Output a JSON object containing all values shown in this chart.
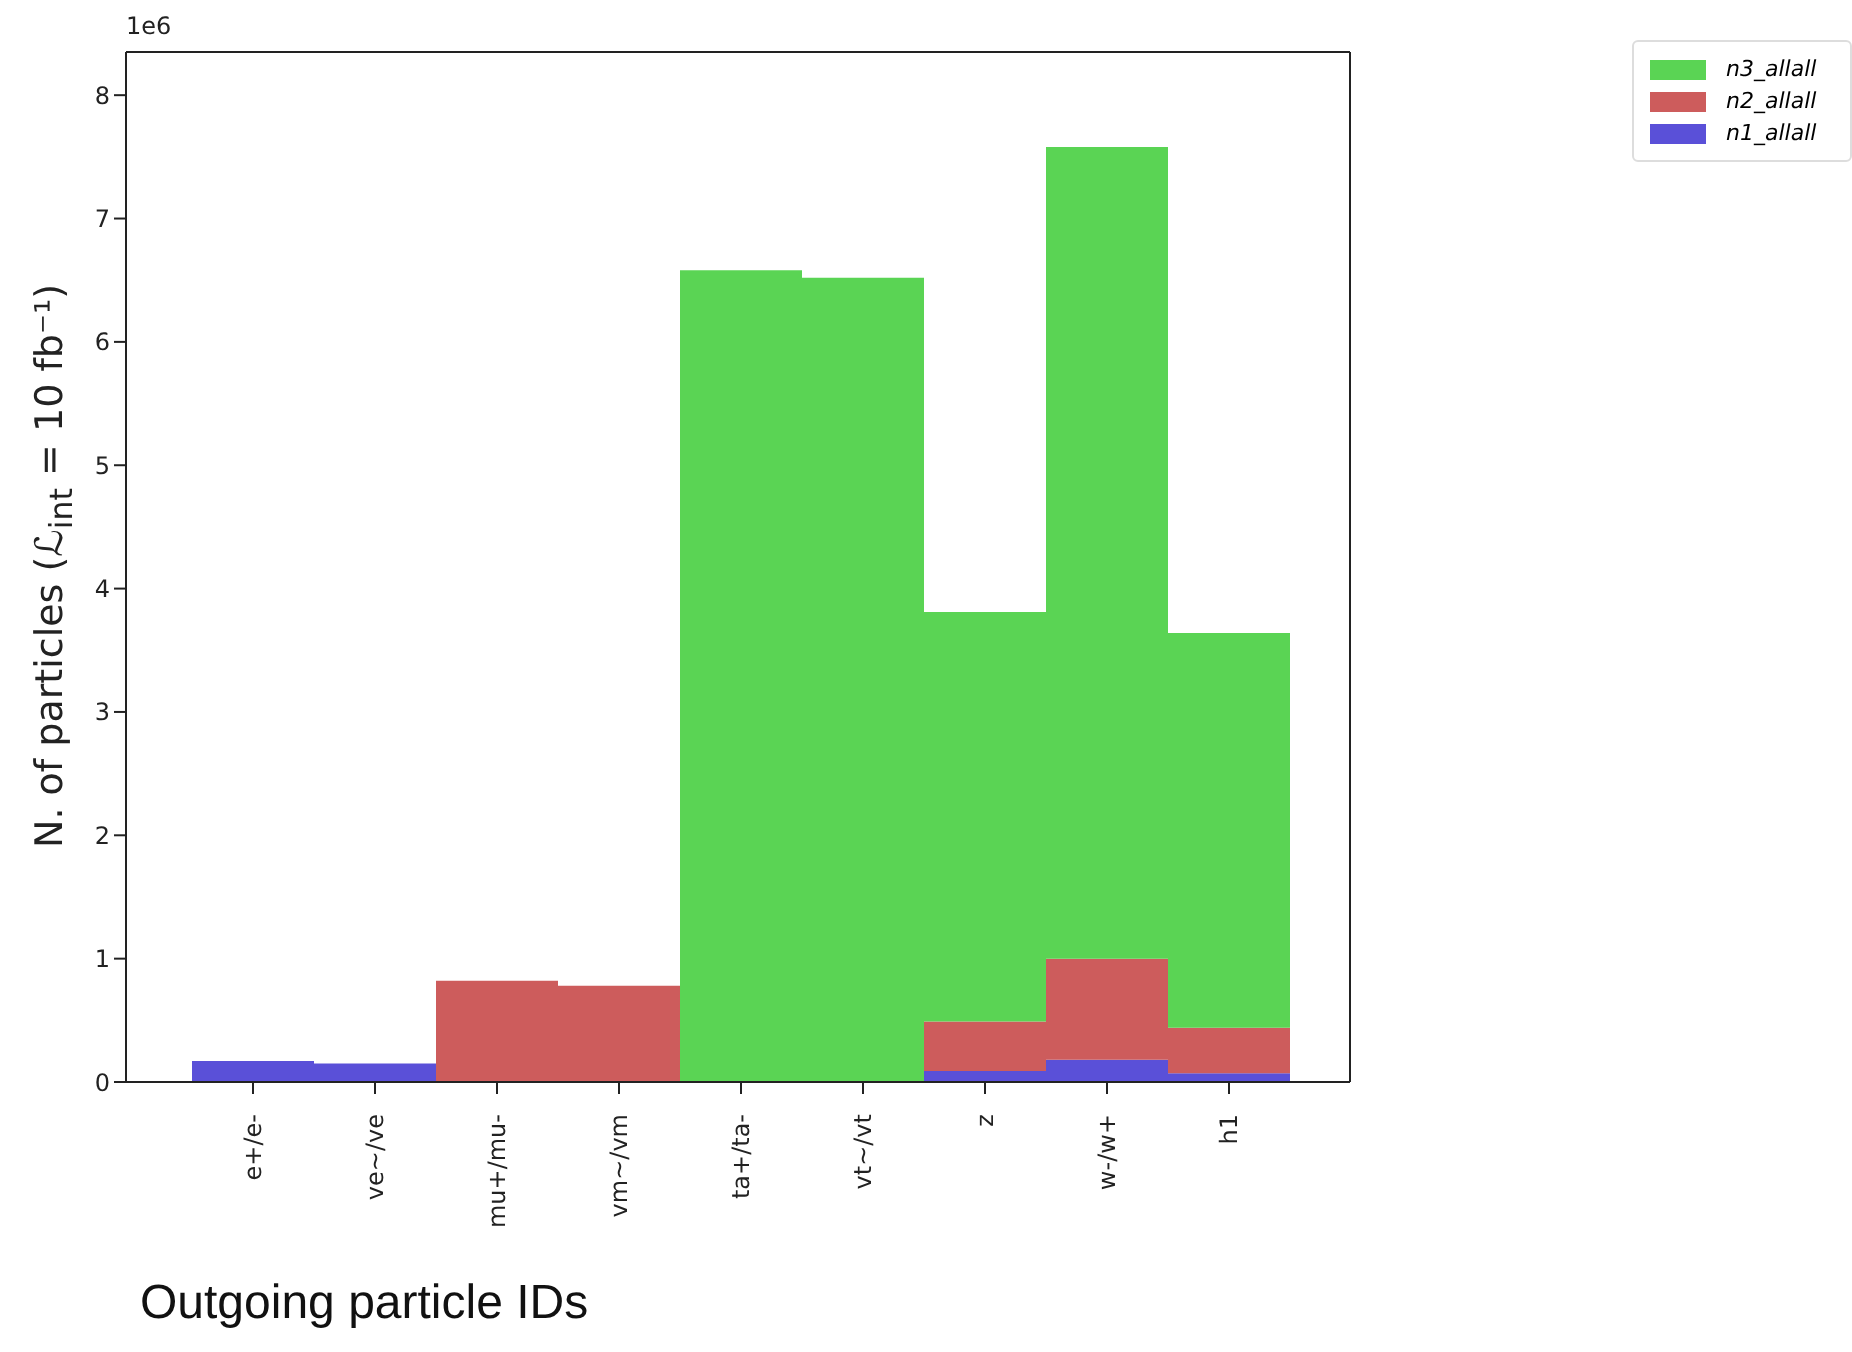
{
  "chart_data": {
    "type": "bar",
    "stacked": true,
    "ylabel": "N. of particles (ℒ$_{int}$ = 10 fb⁻¹)",
    "xlabel": "Outgoing particle IDs",
    "annotations": [
      "1e6"
    ],
    "categories": [
      "e+/e-",
      "ve~/ve",
      "mu+/mu-",
      "vm~/vm",
      "ta+/ta-",
      "vt~/vt",
      "z",
      "w-/w+",
      "h1"
    ],
    "series": [
      {
        "name": "n1_allall",
        "color": "#5a50d8",
        "values": [
          0.17,
          0.15,
          0,
          0,
          0,
          0,
          0.09,
          0.18,
          0.07
        ]
      },
      {
        "name": "n2_allall",
        "color": "#cd5c5c",
        "values": [
          0,
          0,
          0.82,
          0.78,
          0,
          0,
          0.4,
          0.82,
          0.37
        ]
      },
      {
        "name": "n3_allall",
        "color": "#5ad454",
        "values": [
          0,
          0,
          0,
          0,
          6.58,
          6.52,
          3.32,
          6.58,
          3.2
        ]
      }
    ],
    "ylim": [
      0,
      8.35
    ],
    "yticks": [
      0,
      1,
      2,
      3,
      4,
      5,
      6,
      7,
      8
    ],
    "legend": "top right"
  }
}
